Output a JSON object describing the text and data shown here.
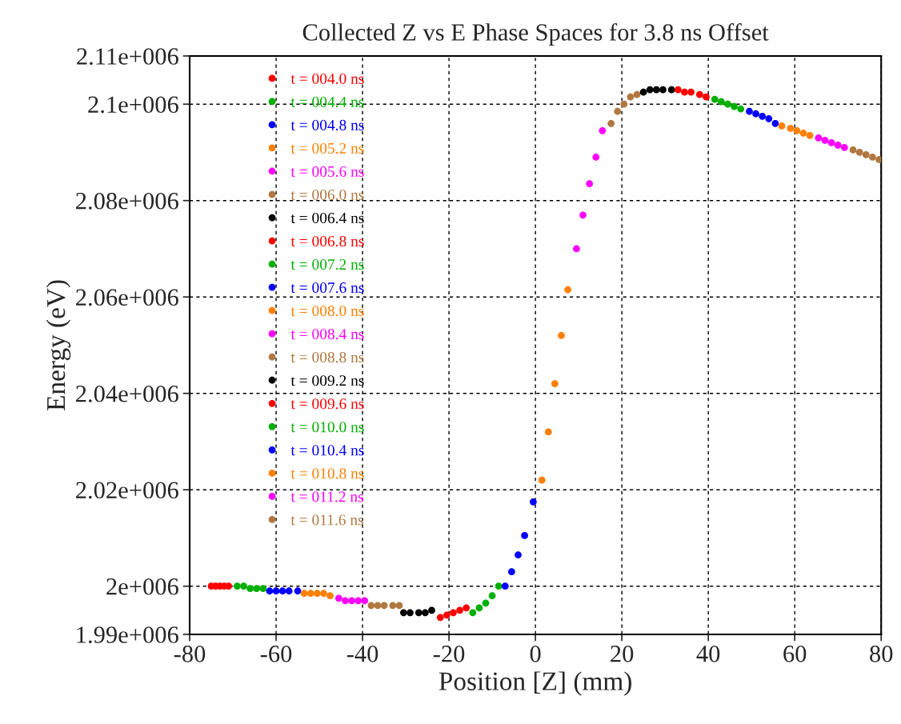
{
  "chart_data": {
    "type": "scatter",
    "title": "Collected Z vs E Phase Spaces for 3.8 ns Offset",
    "xlabel": "Position [Z] (mm)",
    "ylabel": "Energy (eV)",
    "xlim": [
      -80,
      80
    ],
    "xticks": [
      -80,
      -60,
      -40,
      -20,
      0,
      20,
      40,
      60,
      80
    ],
    "ylim": [
      1990000,
      2110000
    ],
    "yticks": [
      {
        "value": 1990000,
        "label": "1.99e+006"
      },
      {
        "value": 2000000,
        "label": "2e+006"
      },
      {
        "value": 2020000,
        "label": "2.02e+006"
      },
      {
        "value": 2040000,
        "label": "2.04e+006"
      },
      {
        "value": 2060000,
        "label": "2.06e+006"
      },
      {
        "value": 2080000,
        "label": "2.08e+006"
      },
      {
        "value": 2100000,
        "label": "2.1e+006"
      },
      {
        "value": 2110000,
        "label": "2.11e+006"
      }
    ],
    "grid": true,
    "legend": "top left",
    "marker": "circle",
    "series": [
      {
        "name": "t = 004.0 ns",
        "color": "#ff0000",
        "x": [
          -75,
          -74,
          -73,
          -72,
          -71
        ],
        "values": [
          2000000,
          2000000,
          2000000,
          2000000,
          2000000
        ]
      },
      {
        "name": "t = 004.4 ns",
        "color": "#00b000",
        "x": [
          -69,
          -67.5,
          -66,
          -64.5,
          -63
        ],
        "values": [
          2000000,
          2000000,
          1999500,
          1999500,
          1999500
        ]
      },
      {
        "name": "t = 004.8 ns",
        "color": "#0000ff",
        "x": [
          -61.5,
          -60,
          -58.5,
          -57,
          -55
        ],
        "values": [
          1999000,
          1999000,
          1999000,
          1999000,
          1999000
        ]
      },
      {
        "name": "t = 005.2 ns",
        "color": "#ff8000",
        "x": [
          -53.5,
          -52,
          -50.5,
          -49,
          -47.5
        ],
        "values": [
          1998500,
          1998500,
          1998500,
          1998500,
          1998000
        ]
      },
      {
        "name": "t = 005.6 ns",
        "color": "#ff00ff",
        "x": [
          -45.5,
          -44,
          -42.5,
          -41,
          -39.5
        ],
        "values": [
          1997500,
          1997000,
          1997000,
          1997000,
          1997000
        ]
      },
      {
        "name": "t = 006.0 ns",
        "color": "#b07840",
        "x": [
          -38,
          -36.5,
          -35,
          -33,
          -31.5
        ],
        "values": [
          1996000,
          1996000,
          1996000,
          1996000,
          1996000
        ]
      },
      {
        "name": "t = 006.4 ns",
        "color": "#000000",
        "x": [
          -30.5,
          -29,
          -27,
          -25.5,
          -24
        ],
        "values": [
          1994500,
          1994500,
          1994500,
          1994500,
          1995000
        ]
      },
      {
        "name": "t = 006.8 ns",
        "color": "#ff0000",
        "x": [
          -22,
          -20.5,
          -19,
          -17.5,
          -16
        ],
        "values": [
          1993500,
          1994000,
          1994500,
          1995000,
          1995500
        ]
      },
      {
        "name": "t = 007.2 ns",
        "color": "#00b000",
        "x": [
          -14.5,
          -13,
          -11.5,
          -10,
          -8.5
        ],
        "values": [
          1994500,
          1995500,
          1996500,
          1998000,
          2000000
        ]
      },
      {
        "name": "t = 007.6 ns",
        "color": "#0000ff",
        "x": [
          -7,
          -5.5,
          -4,
          -2.5,
          -0.5
        ],
        "values": [
          2000000,
          2003000,
          2006500,
          2010500,
          2017500
        ]
      },
      {
        "name": "t = 008.0 ns",
        "color": "#ff8000",
        "x": [
          1.5,
          3,
          4.5,
          6,
          7.5
        ],
        "values": [
          2022000,
          2032000,
          2042000,
          2052000,
          2061500
        ]
      },
      {
        "name": "t = 008.4 ns",
        "color": "#ff00ff",
        "x": [
          9.5,
          11,
          12.5,
          14,
          15.5
        ],
        "values": [
          2070000,
          2077000,
          2083500,
          2089000,
          2094500
        ]
      },
      {
        "name": "t = 008.8 ns",
        "color": "#b07840",
        "x": [
          17.5,
          19,
          20.5,
          22,
          23.5
        ],
        "values": [
          2096000,
          2098500,
          2100000,
          2101500,
          2102000
        ]
      },
      {
        "name": "t = 009.2 ns",
        "color": "#000000",
        "x": [
          25,
          26.5,
          28,
          29.5,
          31.5
        ],
        "values": [
          2102500,
          2103000,
          2103000,
          2103000,
          2103000
        ]
      },
      {
        "name": "t = 009.6 ns",
        "color": "#ff0000",
        "x": [
          33,
          34.5,
          36,
          38,
          39.5
        ],
        "values": [
          2103000,
          2102500,
          2102500,
          2102000,
          2101500
        ]
      },
      {
        "name": "t = 010.0 ns",
        "color": "#00b000",
        "x": [
          41.5,
          43,
          44.5,
          46,
          47.5
        ],
        "values": [
          2101000,
          2100500,
          2100000,
          2099500,
          2099000
        ]
      },
      {
        "name": "t = 010.4 ns",
        "color": "#0000ff",
        "x": [
          49.5,
          51,
          52.5,
          54,
          55.5
        ],
        "values": [
          2098500,
          2098000,
          2097500,
          2097000,
          2096000
        ]
      },
      {
        "name": "t = 010.8 ns",
        "color": "#ff8000",
        "x": [
          57,
          59,
          60.5,
          62,
          63.5
        ],
        "values": [
          2095500,
          2095000,
          2094500,
          2094000,
          2093500
        ]
      },
      {
        "name": "t = 011.2 ns",
        "color": "#ff00ff",
        "x": [
          65.5,
          67,
          68.5,
          70,
          71.5
        ],
        "values": [
          2093000,
          2092500,
          2092000,
          2091500,
          2091000
        ]
      },
      {
        "name": "t = 011.6 ns",
        "color": "#b07840",
        "x": [
          73.5,
          75,
          76.5,
          78,
          79.5
        ],
        "values": [
          2090500,
          2090000,
          2089500,
          2089000,
          2088500
        ]
      }
    ]
  }
}
